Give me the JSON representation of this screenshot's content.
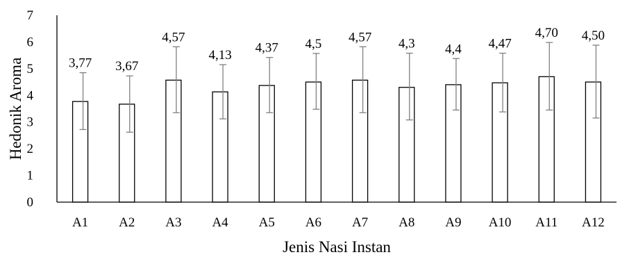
{
  "chart_data": {
    "type": "bar",
    "categories": [
      "A1",
      "A2",
      "A3",
      "A4",
      "A5",
      "A6",
      "A7",
      "A8",
      "A9",
      "A10",
      "A11",
      "A12"
    ],
    "values": [
      3.77,
      3.67,
      4.57,
      4.13,
      4.37,
      4.5,
      4.57,
      4.3,
      4.4,
      4.47,
      4.7,
      4.5
    ],
    "data_labels": [
      "3,77",
      "3,67",
      "4,57",
      "4,13",
      "4,37",
      "4,5",
      "4,57",
      "4,3",
      "4,4",
      "4,47",
      "4,70",
      "4,50"
    ],
    "error_upper": [
      4.85,
      4.73,
      5.82,
      5.15,
      5.42,
      5.57,
      5.82,
      5.58,
      5.38,
      5.58,
      5.98,
      5.88
    ],
    "error_lower": [
      2.72,
      2.62,
      3.35,
      3.12,
      3.35,
      3.48,
      3.35,
      3.08,
      3.45,
      3.38,
      3.45,
      3.15
    ],
    "xlabel": "Jenis Nasi Instan",
    "ylabel": "Hedonik Aroma",
    "ylim": [
      0,
      7
    ],
    "yticks": [
      "0",
      "1",
      "2",
      "3",
      "4",
      "5",
      "6",
      "7"
    ],
    "grid": false,
    "legend": "none",
    "colors": {
      "bar_fill": "#ffffff",
      "bar_stroke": "#000000",
      "error_bar": "#808080",
      "axis": "#000000"
    }
  }
}
